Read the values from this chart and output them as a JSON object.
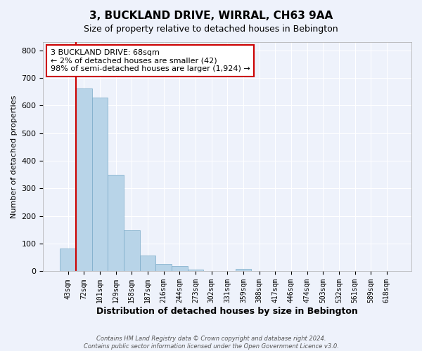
{
  "title": "3, BUCKLAND DRIVE, WIRRAL, CH63 9AA",
  "subtitle": "Size of property relative to detached houses in Bebington",
  "xlabel": "Distribution of detached houses by size in Bebington",
  "ylabel": "Number of detached properties",
  "bar_labels": [
    "43sqm",
    "72sqm",
    "101sqm",
    "129sqm",
    "158sqm",
    "187sqm",
    "216sqm",
    "244sqm",
    "273sqm",
    "302sqm",
    "331sqm",
    "359sqm",
    "388sqm",
    "417sqm",
    "446sqm",
    "474sqm",
    "503sqm",
    "532sqm",
    "561sqm",
    "589sqm",
    "618sqm"
  ],
  "bar_values": [
    83,
    663,
    630,
    350,
    148,
    57,
    27,
    18,
    7,
    0,
    0,
    8,
    0,
    0,
    0,
    0,
    0,
    0,
    0,
    0,
    0
  ],
  "bar_color": "#b8d4e8",
  "bar_edge_color": "#7aaac8",
  "annotation_line1": "3 BUCKLAND DRIVE: 68sqm",
  "annotation_line2": "← 2% of detached houses are smaller (42)",
  "annotation_line3": "98% of semi-detached houses are larger (1,924) →",
  "ylim": [
    0,
    830
  ],
  "yticks": [
    0,
    100,
    200,
    300,
    400,
    500,
    600,
    700,
    800
  ],
  "vline_color": "#cc0000",
  "annotation_box_facecolor": "#ffffff",
  "annotation_box_edgecolor": "#cc0000",
  "footer_line1": "Contains HM Land Registry data © Crown copyright and database right 2024.",
  "footer_line2": "Contains public sector information licensed under the Open Government Licence v3.0.",
  "background_color": "#eef2fb",
  "plot_background": "#eef2fb",
  "grid_color": "#ffffff",
  "title_fontsize": 11,
  "subtitle_fontsize": 9,
  "xlabel_fontsize": 9,
  "ylabel_fontsize": 8,
  "tick_fontsize": 7,
  "annotation_fontsize": 8,
  "footer_fontsize": 6
}
